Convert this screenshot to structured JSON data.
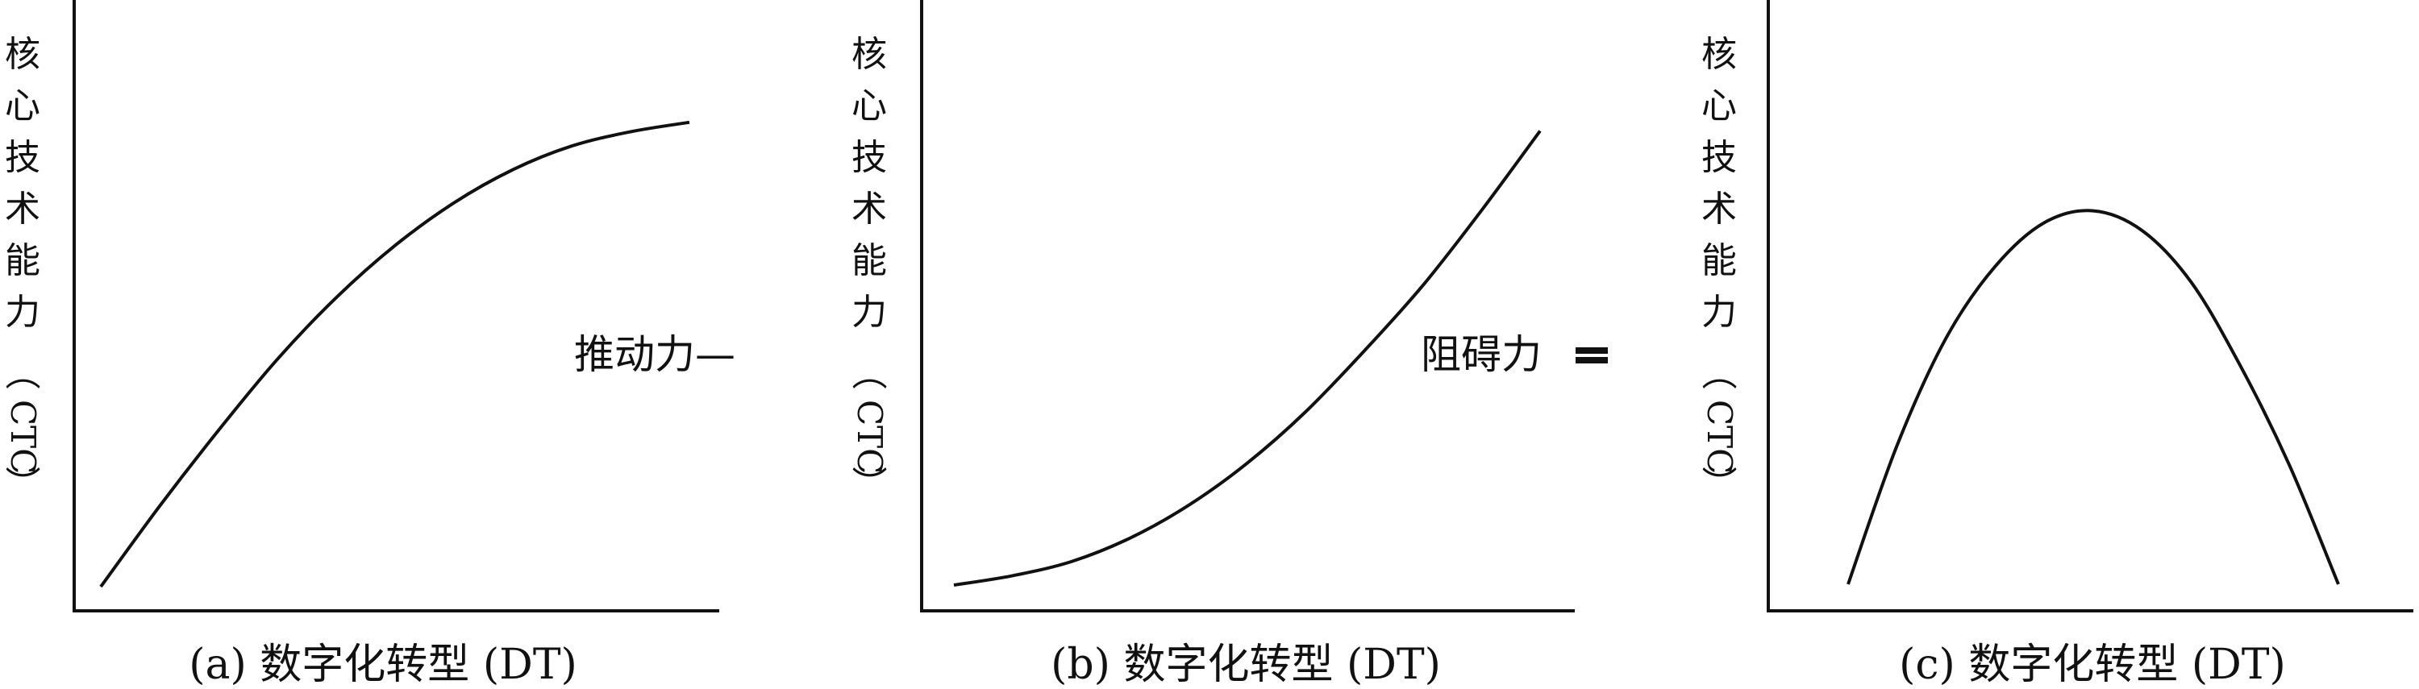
{
  "chart_data": [
    {
      "type": "line",
      "ylabel": "核心技术能力（CTC）",
      "caption": "(a) 数字化转型 (DT)",
      "legend": "推动力—",
      "series": [
        {
          "shape": "concave-increasing",
          "x": [
            0,
            0.1,
            0.2,
            0.3,
            0.4,
            0.5,
            0.6,
            0.7,
            0.8,
            0.9,
            1.0
          ],
          "y": [
            0.0,
            0.17,
            0.33,
            0.48,
            0.61,
            0.72,
            0.81,
            0.88,
            0.93,
            0.96,
            0.98
          ]
        }
      ]
    },
    {
      "type": "line",
      "ylabel": "核心技术能力（CTC）",
      "caption": "(b) 数字化转型 (DT)",
      "legend": "阻碍力",
      "series": [
        {
          "shape": "convex-increasing",
          "x": [
            0,
            0.1,
            0.2,
            0.3,
            0.4,
            0.5,
            0.6,
            0.7,
            0.8,
            0.9,
            1.0
          ],
          "y": [
            0.0,
            0.02,
            0.05,
            0.1,
            0.17,
            0.26,
            0.37,
            0.5,
            0.64,
            0.8,
            0.97
          ]
        }
      ]
    },
    {
      "type": "line",
      "ylabel": "核心技术能力（CTC）",
      "caption": "(c) 数字化转型 (DT)",
      "series": [
        {
          "shape": "inverted-U",
          "x": [
            0,
            0.1,
            0.2,
            0.3,
            0.4,
            0.5,
            0.6,
            0.7,
            0.8,
            0.9,
            1.0
          ],
          "y": [
            0.0,
            0.35,
            0.62,
            0.8,
            0.91,
            0.94,
            0.89,
            0.76,
            0.55,
            0.3,
            0.0
          ]
        }
      ]
    }
  ]
}
